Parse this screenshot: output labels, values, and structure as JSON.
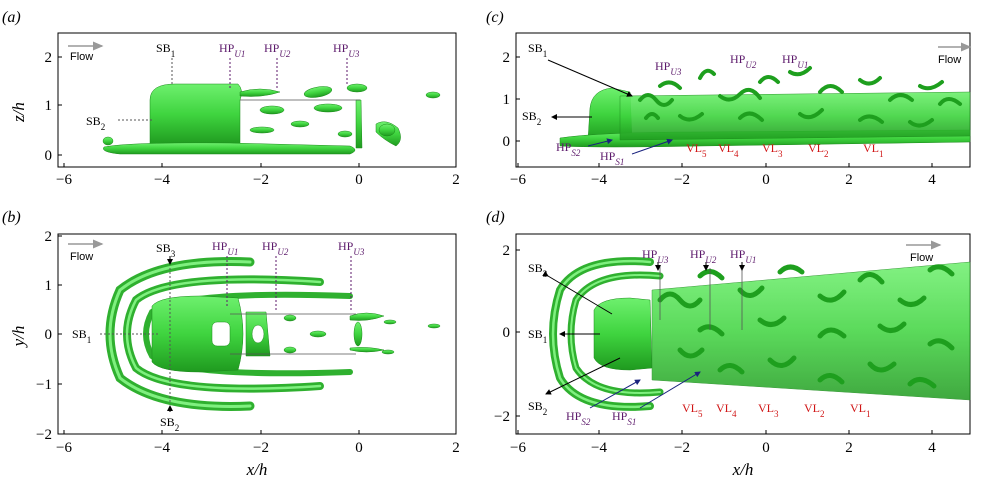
{
  "figure": {
    "panels": [
      {
        "id": "a",
        "label": "(a)",
        "ylabel": "z/h",
        "xticks": [
          "−6",
          "−4",
          "−2",
          "0",
          "2"
        ],
        "yticks": [
          "0",
          "1",
          "2"
        ],
        "flow_label": "Flow",
        "annotations": [
          {
            "text": "SB",
            "sub": "1",
            "style": "k"
          },
          {
            "text": "SB",
            "sub": "2",
            "style": "k"
          },
          {
            "text": "HP",
            "sub": "U1",
            "style": "p"
          },
          {
            "text": "HP",
            "sub": "U2",
            "style": "p"
          },
          {
            "text": "HP",
            "sub": "U3",
            "style": "p"
          }
        ]
      },
      {
        "id": "b",
        "label": "(b)",
        "ylabel": "y/h",
        "xlabel": "x/h",
        "xticks": [
          "−6",
          "−4",
          "−2",
          "0",
          "2"
        ],
        "yticks": [
          "−2",
          "−1",
          "0",
          "1",
          "2"
        ],
        "flow_label": "Flow",
        "annotations": [
          {
            "text": "SB",
            "sub": "3",
            "style": "k"
          },
          {
            "text": "SB",
            "sub": "1",
            "style": "k"
          },
          {
            "text": "SB",
            "sub": "2",
            "style": "k"
          },
          {
            "text": "HP",
            "sub": "U1",
            "style": "p"
          },
          {
            "text": "HP",
            "sub": "U2",
            "style": "p"
          },
          {
            "text": "HP",
            "sub": "U3",
            "style": "p"
          }
        ]
      },
      {
        "id": "c",
        "label": "(c)",
        "xticks": [
          "−6",
          "−4",
          "−2",
          "0",
          "2",
          "4"
        ],
        "yticks": [
          "0",
          "1",
          "2"
        ],
        "flow_label": "Flow",
        "annotations": [
          {
            "text": "SB",
            "sub": "1",
            "style": "k"
          },
          {
            "text": "SB",
            "sub": "2",
            "style": "k"
          },
          {
            "text": "HP",
            "sub": "U3",
            "style": "p"
          },
          {
            "text": "HP",
            "sub": "U2",
            "style": "p"
          },
          {
            "text": "HP",
            "sub": "U1",
            "style": "p"
          },
          {
            "text": "HP",
            "sub": "S2",
            "style": "p"
          },
          {
            "text": "HP",
            "sub": "S1",
            "style": "p"
          },
          {
            "text": "VL",
            "sub": "5",
            "style": "r"
          },
          {
            "text": "VL",
            "sub": "4",
            "style": "r"
          },
          {
            "text": "VL",
            "sub": "3",
            "style": "r"
          },
          {
            "text": "VL",
            "sub": "2",
            "style": "r"
          },
          {
            "text": "VL",
            "sub": "1",
            "style": "r"
          }
        ]
      },
      {
        "id": "d",
        "label": "(d)",
        "xlabel": "x/h",
        "xticks": [
          "−6",
          "−4",
          "−2",
          "0",
          "2",
          "4"
        ],
        "yticks": [
          "−2",
          "0",
          "2"
        ],
        "flow_label": "Flow",
        "annotations": [
          {
            "text": "SB",
            "sub": "3",
            "style": "k"
          },
          {
            "text": "SB",
            "sub": "1",
            "style": "k"
          },
          {
            "text": "SB",
            "sub": "2",
            "style": "k"
          },
          {
            "text": "HP",
            "sub": "U3",
            "style": "p"
          },
          {
            "text": "HP",
            "sub": "U2",
            "style": "p"
          },
          {
            "text": "HP",
            "sub": "U1",
            "style": "p"
          },
          {
            "text": "HP",
            "sub": "S2",
            "style": "p"
          },
          {
            "text": "HP",
            "sub": "S1",
            "style": "p"
          },
          {
            "text": "VL",
            "sub": "5",
            "style": "r"
          },
          {
            "text": "VL",
            "sub": "4",
            "style": "r"
          },
          {
            "text": "VL",
            "sub": "3",
            "style": "r"
          },
          {
            "text": "VL",
            "sub": "2",
            "style": "r"
          },
          {
            "text": "VL",
            "sub": "1",
            "style": "r"
          }
        ]
      }
    ],
    "colors": {
      "vortex_green": "#3fd43f",
      "vortex_dark": "#1a9a1a",
      "purple": "#5c1a6b",
      "red": "#d01515",
      "arrow_gray": "#999999"
    }
  }
}
